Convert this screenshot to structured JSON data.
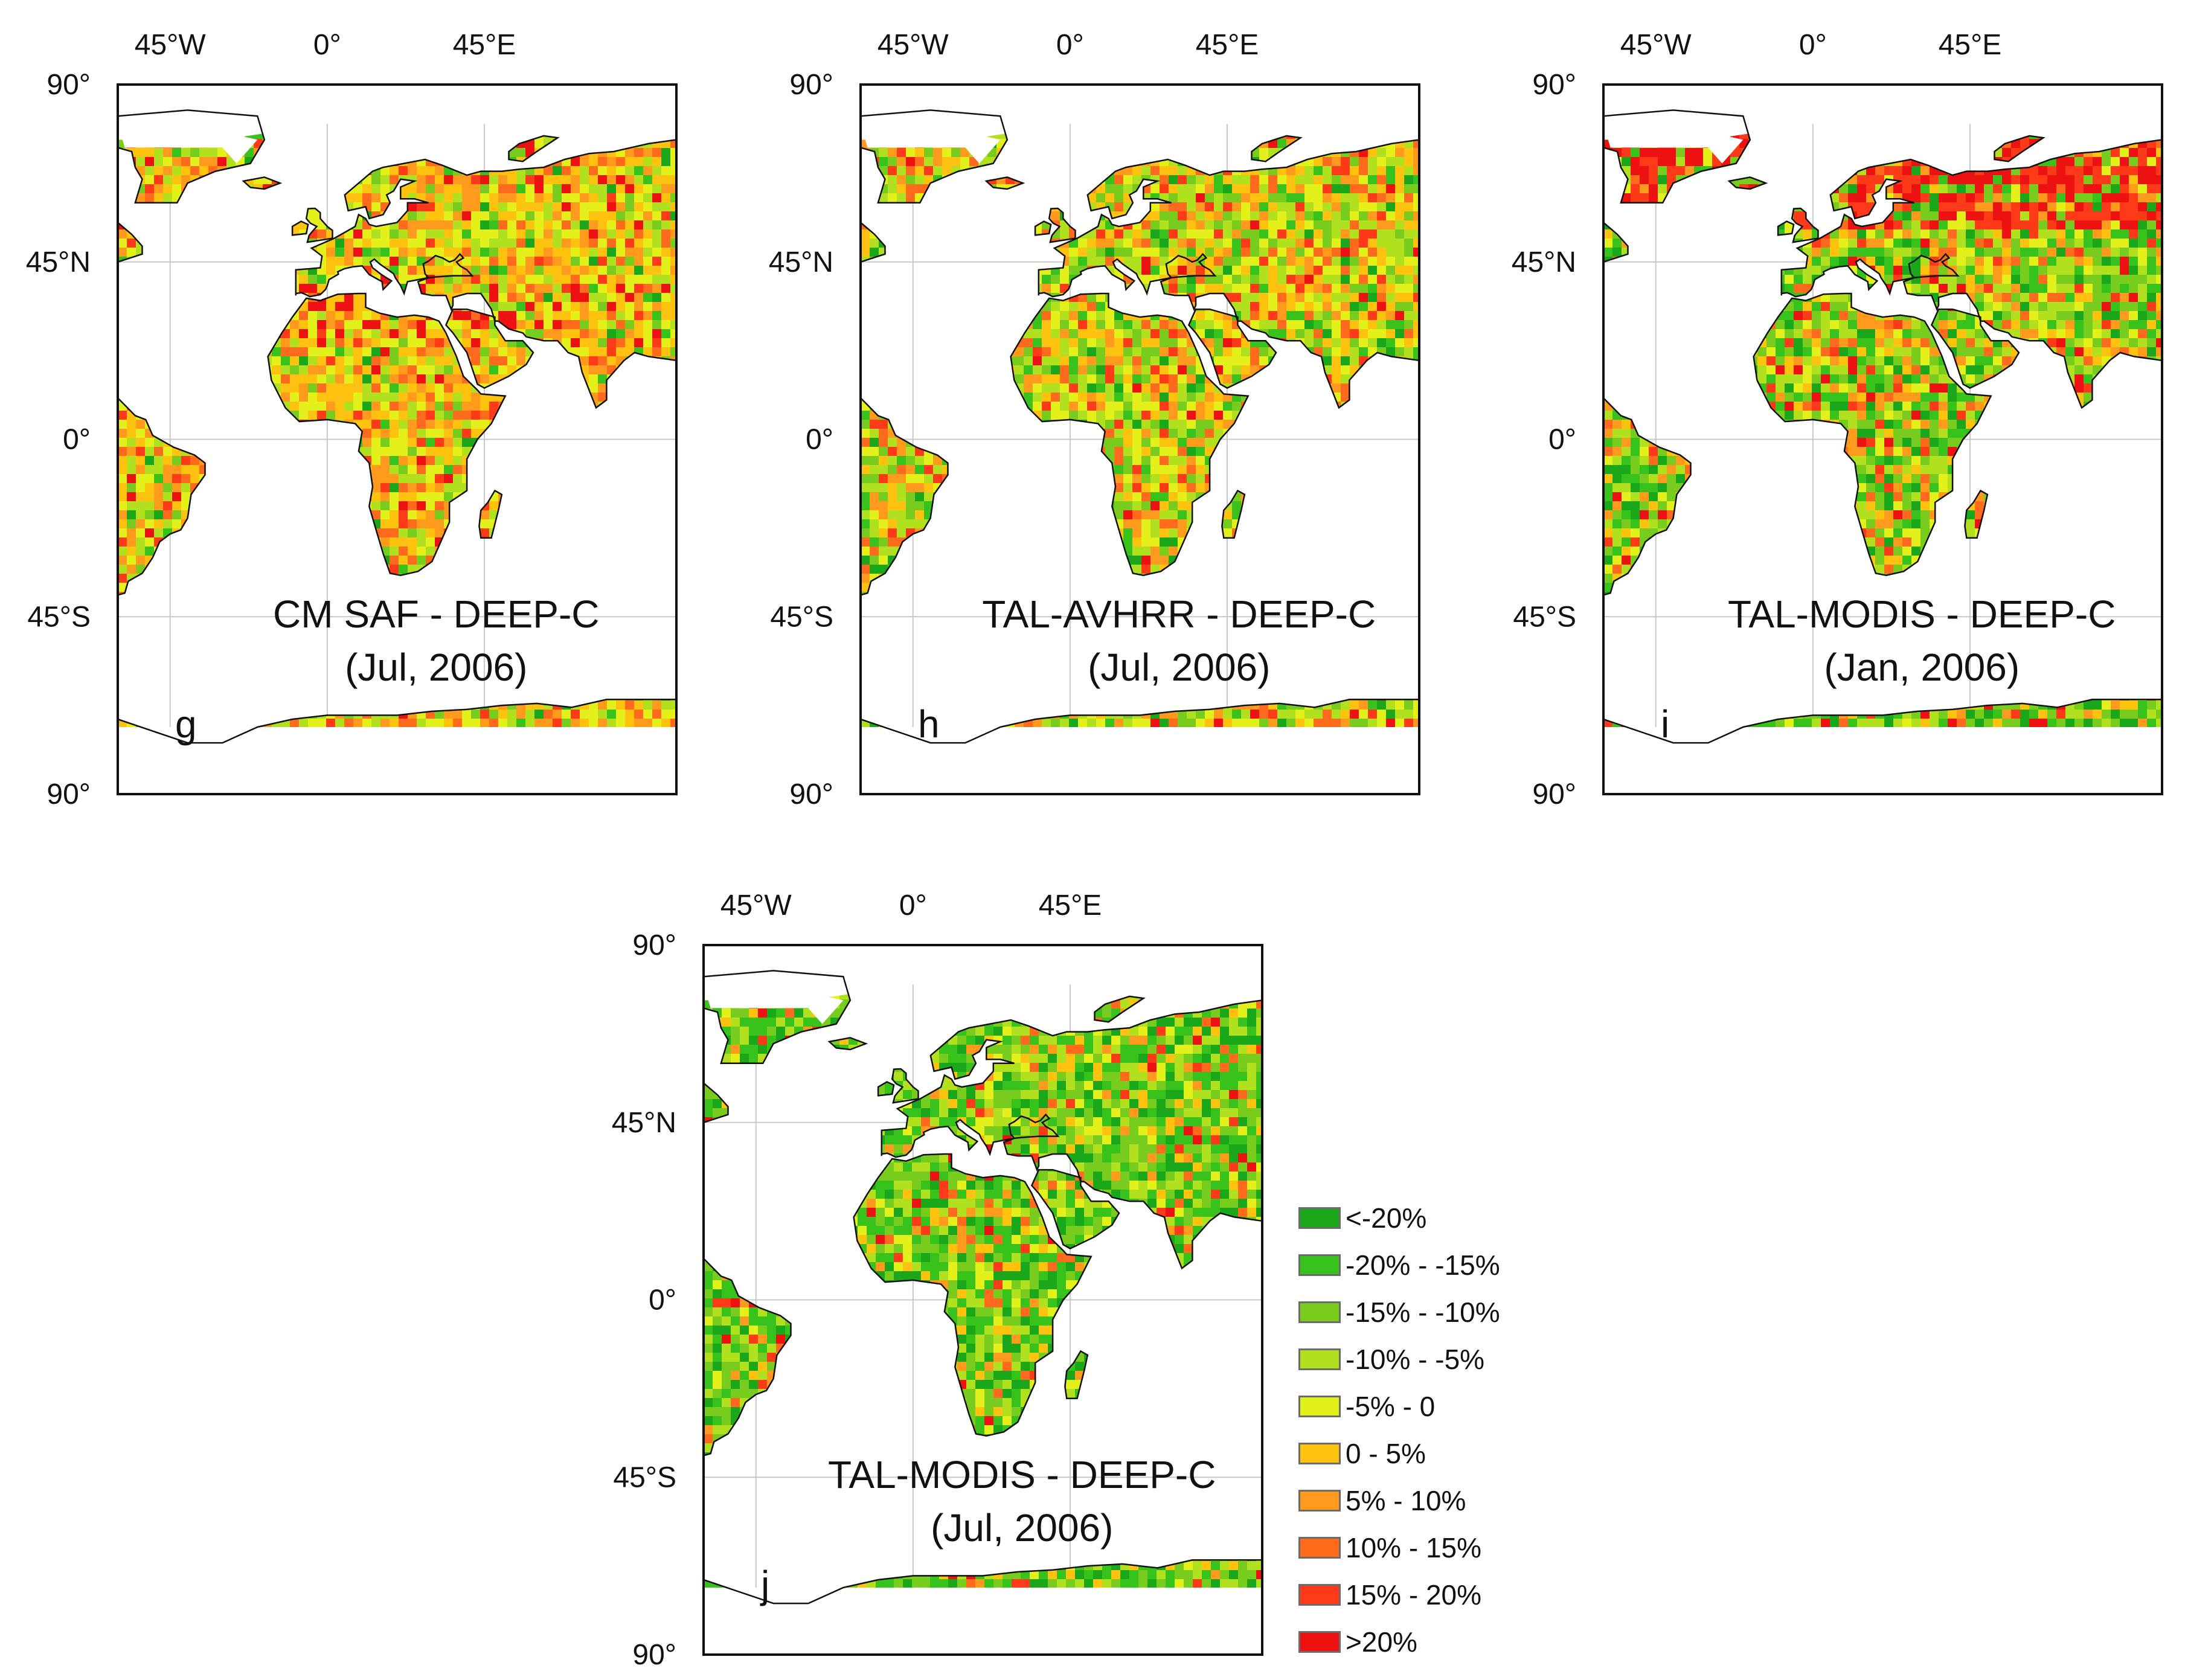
{
  "figure": {
    "axis_labels": {
      "lon": [
        "45°W",
        "0°",
        "45°E"
      ],
      "lat": [
        "90°",
        "45°N",
        "0°",
        "45°S",
        "90°"
      ]
    },
    "panels": [
      {
        "letter": "g",
        "title": "CM SAF - DEEP-C",
        "date": "(Jul, 2006)",
        "pattern": "warm"
      },
      {
        "letter": "h",
        "title": "TAL-AVHRR - DEEP-C",
        "date": "(Jul, 2006)",
        "pattern": "mixed"
      },
      {
        "letter": "i",
        "title": "TAL-MODIS - DEEP-C",
        "date": "(Jan, 2006)",
        "pattern": "cool-red-north"
      },
      {
        "letter": "j",
        "title": "TAL-MODIS - DEEP-C",
        "date": "(Jul, 2006)",
        "pattern": "cool"
      }
    ]
  },
  "legend": {
    "items": [
      {
        "label": "<-20%",
        "color": "#1aa81a"
      },
      {
        "label": "-20% - -15%",
        "color": "#38c21c"
      },
      {
        "label": "-15% - -10%",
        "color": "#78cc1e"
      },
      {
        "label": "-10% - -5%",
        "color": "#b0e01e"
      },
      {
        "label": "-5% - 0",
        "color": "#e4f01a"
      },
      {
        "label": "0 - 5%",
        "color": "#ffc20e"
      },
      {
        "label": "5% - 10%",
        "color": "#ff9a1c"
      },
      {
        "label": "10% - 15%",
        "color": "#ff6a1c"
      },
      {
        "label": "15% - 20%",
        "color": "#ff3a18"
      },
      {
        "label": ">20%",
        "color": "#ee1111"
      }
    ]
  }
}
